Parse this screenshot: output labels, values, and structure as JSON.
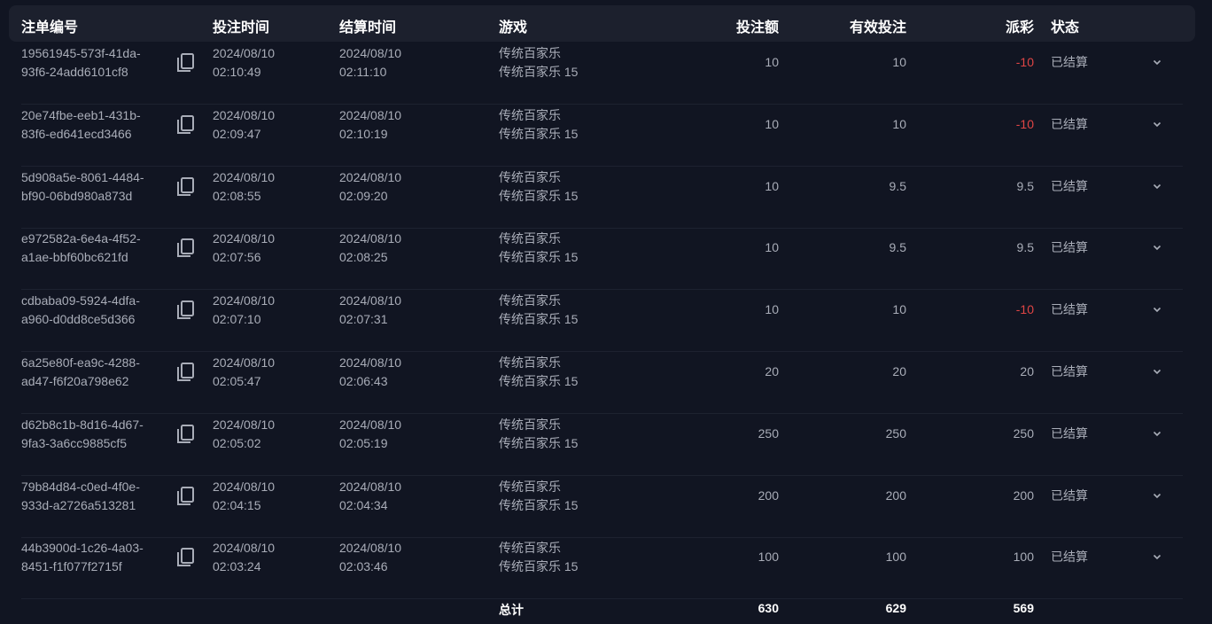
{
  "columns": [
    "注单编号",
    "投注时间",
    "结算时间",
    "游戏",
    "投注额",
    "有效投注",
    "派彩",
    "状态"
  ],
  "rows": [
    {
      "id1": "19561945-573f-41da-",
      "id2": "93f6-24add6101cf8",
      "bet_date": "2024/08/10",
      "bet_time": "02:10:49",
      "settle_date": "2024/08/10",
      "settle_time": "02:11:10",
      "game": "传统百家乐",
      "table": "传统百家乐 15",
      "amount": "10",
      "valid": "10",
      "payout": "-10",
      "status": "已结算"
    },
    {
      "id1": "20e74fbe-eeb1-431b-",
      "id2": "83f6-ed641ecd3466",
      "bet_date": "2024/08/10",
      "bet_time": "02:09:47",
      "settle_date": "2024/08/10",
      "settle_time": "02:10:19",
      "game": "传统百家乐",
      "table": "传统百家乐 15",
      "amount": "10",
      "valid": "10",
      "payout": "-10",
      "status": "已结算"
    },
    {
      "id1": "5d908a5e-8061-4484-",
      "id2": "bf90-06bd980a873d",
      "bet_date": "2024/08/10",
      "bet_time": "02:08:55",
      "settle_date": "2024/08/10",
      "settle_time": "02:09:20",
      "game": "传统百家乐",
      "table": "传统百家乐 15",
      "amount": "10",
      "valid": "9.5",
      "payout": "9.5",
      "status": "已结算"
    },
    {
      "id1": "e972582a-6e4a-4f52-",
      "id2": "a1ae-bbf60bc621fd",
      "bet_date": "2024/08/10",
      "bet_time": "02:07:56",
      "settle_date": "2024/08/10",
      "settle_time": "02:08:25",
      "game": "传统百家乐",
      "table": "传统百家乐 15",
      "amount": "10",
      "valid": "9.5",
      "payout": "9.5",
      "status": "已结算"
    },
    {
      "id1": "cdbaba09-5924-4dfa-",
      "id2": "a960-d0dd8ce5d366",
      "bet_date": "2024/08/10",
      "bet_time": "02:07:10",
      "settle_date": "2024/08/10",
      "settle_time": "02:07:31",
      "game": "传统百家乐",
      "table": "传统百家乐 15",
      "amount": "10",
      "valid": "10",
      "payout": "-10",
      "status": "已结算"
    },
    {
      "id1": "6a25e80f-ea9c-4288-",
      "id2": "ad47-f6f20a798e62",
      "bet_date": "2024/08/10",
      "bet_time": "02:05:47",
      "settle_date": "2024/08/10",
      "settle_time": "02:06:43",
      "game": "传统百家乐",
      "table": "传统百家乐 15",
      "amount": "20",
      "valid": "20",
      "payout": "20",
      "status": "已结算"
    },
    {
      "id1": "d62b8c1b-8d16-4d67-",
      "id2": "9fa3-3a6cc9885cf5",
      "bet_date": "2024/08/10",
      "bet_time": "02:05:02",
      "settle_date": "2024/08/10",
      "settle_time": "02:05:19",
      "game": "传统百家乐",
      "table": "传统百家乐 15",
      "amount": "250",
      "valid": "250",
      "payout": "250",
      "status": "已结算"
    },
    {
      "id1": "79b84d84-c0ed-4f0e-",
      "id2": "933d-a2726a513281",
      "bet_date": "2024/08/10",
      "bet_time": "02:04:15",
      "settle_date": "2024/08/10",
      "settle_time": "02:04:34",
      "game": "传统百家乐",
      "table": "传统百家乐 15",
      "amount": "200",
      "valid": "200",
      "payout": "200",
      "status": "已结算"
    },
    {
      "id1": "44b3900d-1c26-4a03-",
      "id2": "8451-f1f077f2715f",
      "bet_date": "2024/08/10",
      "bet_time": "02:03:24",
      "settle_date": "2024/08/10",
      "settle_time": "02:03:46",
      "game": "传统百家乐",
      "table": "传统百家乐 15",
      "amount": "100",
      "valid": "100",
      "payout": "100",
      "status": "已结算"
    }
  ],
  "total": {
    "label": "总计",
    "amount": "630",
    "valid": "629",
    "payout": "569"
  },
  "colors": {
    "negative": "#e04545",
    "background": "#111522",
    "header": "#1c202d"
  },
  "icons": {
    "copy": "copy-icon",
    "expand": "chevron-down-icon"
  }
}
